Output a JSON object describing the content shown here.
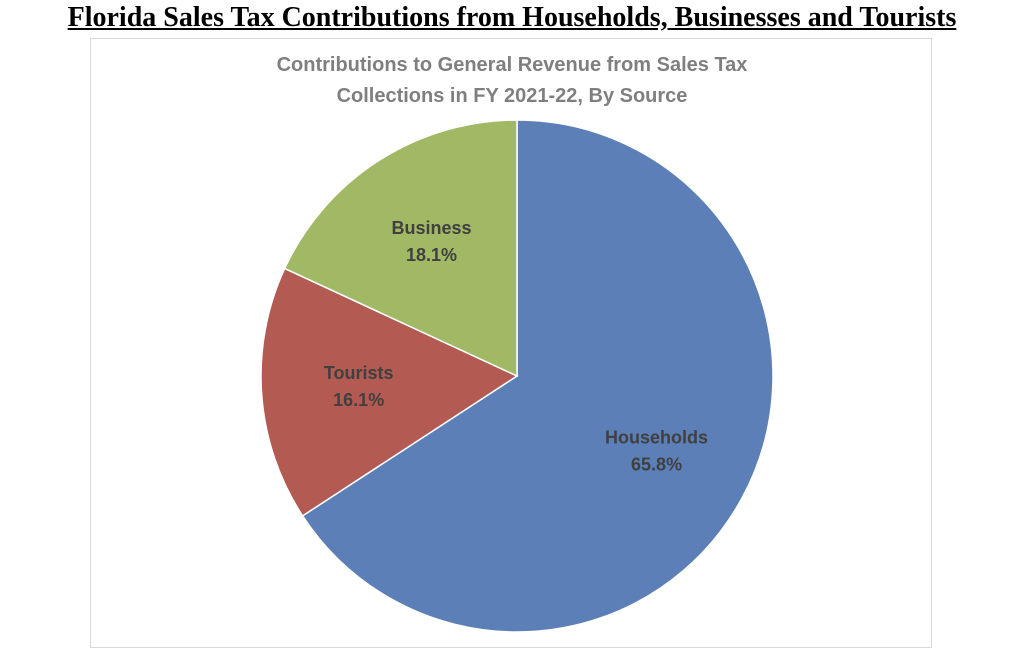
{
  "heading": "Florida Sales Tax Contributions from Households, Businesses and Tourists",
  "chart_data": {
    "type": "pie",
    "title": "Contributions to General Revenue from Sales Tax Collections in FY 2021-22, By Source",
    "categories": [
      "Households",
      "Tourists",
      "Business"
    ],
    "values": [
      65.8,
      16.1,
      18.1
    ],
    "value_labels": [
      "65.8%",
      "16.1%",
      "18.1%"
    ],
    "colors": [
      "#5b7fb6",
      "#b35a52",
      "#a1b965"
    ]
  }
}
